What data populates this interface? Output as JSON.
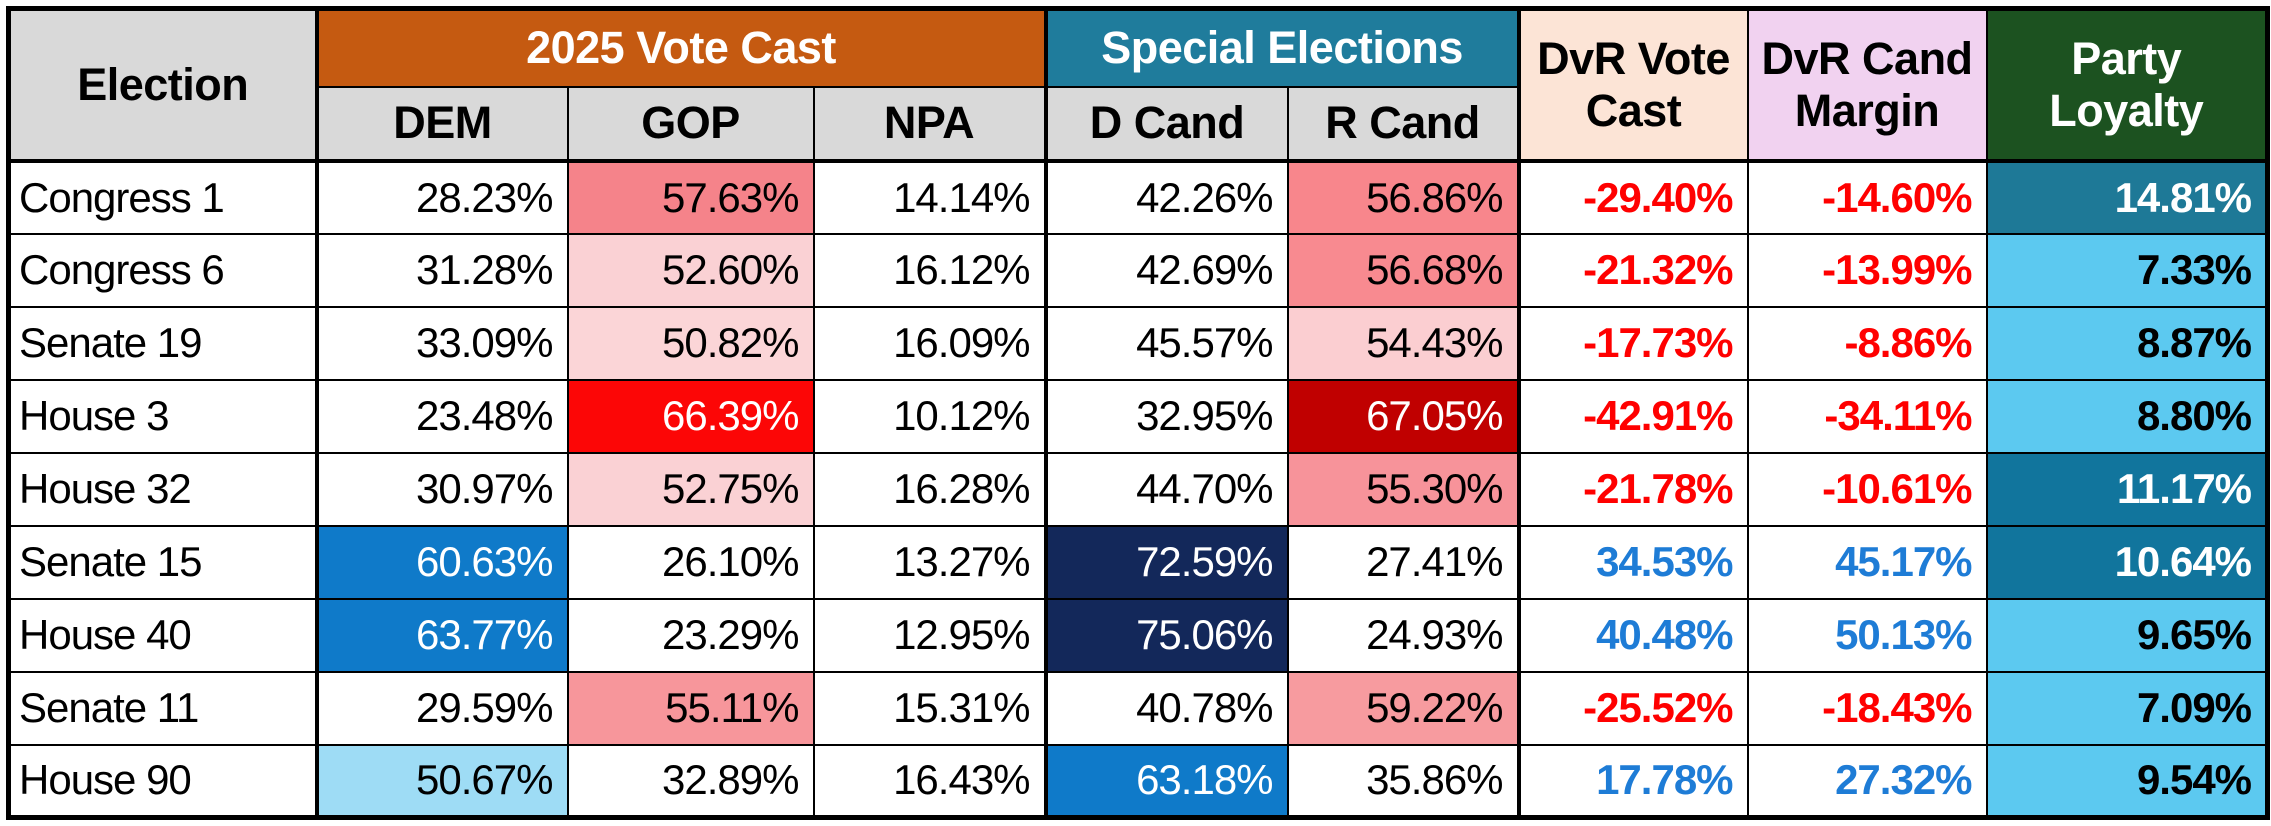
{
  "header": {
    "election": "Election",
    "vote_cast_group": "2025 Vote Cast",
    "special_group": "Special Elections",
    "dem": "DEM",
    "gop": "GOP",
    "npa": "NPA",
    "d_cand": "D Cand",
    "r_cand": "R Cand",
    "dvr_vote": "DvR Vote Cast",
    "dvr_cand": "DvR Cand Margin",
    "party_loyalty": "Party Loyalty"
  },
  "colors": {
    "header_gray": "#D9D9D9",
    "header_orange": "#C55A11",
    "header_teal": "#1F7C9C",
    "header_peach": "#FCE4D6",
    "header_pink": "#F1D2F0",
    "header_green": "#1C5220",
    "negative_text": "#FF0000",
    "positive_text": "#1E7CD6",
    "border": "#000000"
  },
  "chart_data": {
    "type": "table",
    "unit": "percent",
    "column_groups": [
      {
        "label": "2025 Vote Cast",
        "columns": [
          "DEM",
          "GOP",
          "NPA"
        ]
      },
      {
        "label": "Special Elections",
        "columns": [
          "D Cand",
          "R Cand"
        ]
      }
    ],
    "columns": [
      "Election",
      "DEM",
      "GOP",
      "NPA",
      "D Cand",
      "R Cand",
      "DvR Vote Cast",
      "DvR Cand Margin",
      "Party Loyalty"
    ],
    "rows": [
      {
        "election": "Congress 1",
        "dem": 28.23,
        "gop": 57.63,
        "npa": 14.14,
        "d_cand": 42.26,
        "r_cand": 56.86,
        "dvr_vote_cast": -29.4,
        "dvr_cand_margin": -14.6,
        "party_loyalty": 14.81
      },
      {
        "election": "Congress 6",
        "dem": 31.28,
        "gop": 52.6,
        "npa": 16.12,
        "d_cand": 42.69,
        "r_cand": 56.68,
        "dvr_vote_cast": -21.32,
        "dvr_cand_margin": -13.99,
        "party_loyalty": 7.33
      },
      {
        "election": "Senate 19",
        "dem": 33.09,
        "gop": 50.82,
        "npa": 16.09,
        "d_cand": 45.57,
        "r_cand": 54.43,
        "dvr_vote_cast": -17.73,
        "dvr_cand_margin": -8.86,
        "party_loyalty": 8.87
      },
      {
        "election": "House 3",
        "dem": 23.48,
        "gop": 66.39,
        "npa": 10.12,
        "d_cand": 32.95,
        "r_cand": 67.05,
        "dvr_vote_cast": -42.91,
        "dvr_cand_margin": -34.11,
        "party_loyalty": 8.8
      },
      {
        "election": "House 32",
        "dem": 30.97,
        "gop": 52.75,
        "npa": 16.28,
        "d_cand": 44.7,
        "r_cand": 55.3,
        "dvr_vote_cast": -21.78,
        "dvr_cand_margin": -10.61,
        "party_loyalty": 11.17
      },
      {
        "election": "Senate 15",
        "dem": 60.63,
        "gop": 26.1,
        "npa": 13.27,
        "d_cand": 72.59,
        "r_cand": 27.41,
        "dvr_vote_cast": 34.53,
        "dvr_cand_margin": 45.17,
        "party_loyalty": 10.64
      },
      {
        "election": "House 40",
        "dem": 63.77,
        "gop": 23.29,
        "npa": 12.95,
        "d_cand": 75.06,
        "r_cand": 24.93,
        "dvr_vote_cast": 40.48,
        "dvr_cand_margin": 50.13,
        "party_loyalty": 9.65
      },
      {
        "election": "Senate 11",
        "dem": 29.59,
        "gop": 55.11,
        "npa": 15.31,
        "d_cand": 40.78,
        "r_cand": 59.22,
        "dvr_vote_cast": -25.52,
        "dvr_cand_margin": -18.43,
        "party_loyalty": 7.09
      },
      {
        "election": "House 90",
        "dem": 50.67,
        "gop": 32.89,
        "npa": 16.43,
        "d_cand": 63.18,
        "r_cand": 35.86,
        "dvr_vote_cast": 17.78,
        "dvr_cand_margin": 27.32,
        "party_loyalty": 9.54
      }
    ]
  },
  "style_defs": {
    "salmon1": {
      "bg": "#F5838A"
    },
    "salmon2": {
      "bg": "#F8868C"
    },
    "salmon3": {
      "bg": "#F88A90"
    },
    "salmon4": {
      "bg": "#F7939A"
    },
    "salmon5": {
      "bg": "#F7969B"
    },
    "salmon6": {
      "bg": "#F79B9F"
    },
    "pink1": {
      "bg": "#FAD1D4"
    },
    "pink2": {
      "bg": "#FBD5D7"
    },
    "pink3": {
      "bg": "#FBCED1"
    },
    "red-bright": {
      "bg": "#FC0606",
      "fg": "#FFFFFF"
    },
    "red-dark": {
      "bg": "#C00000",
      "fg": "#FFFFFF"
    },
    "blue-med": {
      "bg": "#0F7AC9",
      "fg": "#FFFFFF"
    },
    "blue-navy": {
      "bg": "#13285A",
      "fg": "#FFFFFF"
    },
    "blue-light": {
      "bg": "#9EDCF5",
      "fg": "#000000"
    },
    "neg": {
      "fg": "#FF0000",
      "bold": true
    },
    "pos": {
      "fg": "#1E7CD6",
      "bold": true
    },
    "loyal-dark": {
      "bg": "#1E7997",
      "fg": "#FFFFFF",
      "bold": true
    },
    "loyal-med": {
      "bg": "#11759D",
      "fg": "#FFFFFF",
      "bold": true
    },
    "loyal-light": {
      "bg": "#5CC9F0",
      "fg": "#000000",
      "bold": true
    }
  },
  "style_matrix": [
    [
      "",
      "",
      "salmon1",
      "",
      "",
      "salmon2",
      "neg",
      "neg",
      "loyal-dark"
    ],
    [
      "",
      "",
      "pink1",
      "",
      "",
      "salmon3",
      "neg",
      "neg",
      "loyal-light"
    ],
    [
      "",
      "",
      "pink2",
      "",
      "",
      "pink3",
      "neg",
      "neg",
      "loyal-light"
    ],
    [
      "",
      "",
      "red-bright",
      "",
      "",
      "red-dark",
      "neg",
      "neg",
      "loyal-light"
    ],
    [
      "",
      "",
      "pink1",
      "",
      "",
      "salmon4",
      "neg",
      "neg",
      "loyal-med"
    ],
    [
      "",
      "blue-med",
      "",
      "",
      "blue-navy",
      "",
      "pos",
      "pos",
      "loyal-med"
    ],
    [
      "",
      "blue-med",
      "",
      "",
      "blue-navy",
      "",
      "pos",
      "pos",
      "loyal-light"
    ],
    [
      "",
      "",
      "salmon5",
      "",
      "",
      "salmon6",
      "neg",
      "neg",
      "loyal-light"
    ],
    [
      "",
      "blue-light",
      "",
      "",
      "blue-med",
      "",
      "pos",
      "pos",
      "loyal-light"
    ]
  ]
}
